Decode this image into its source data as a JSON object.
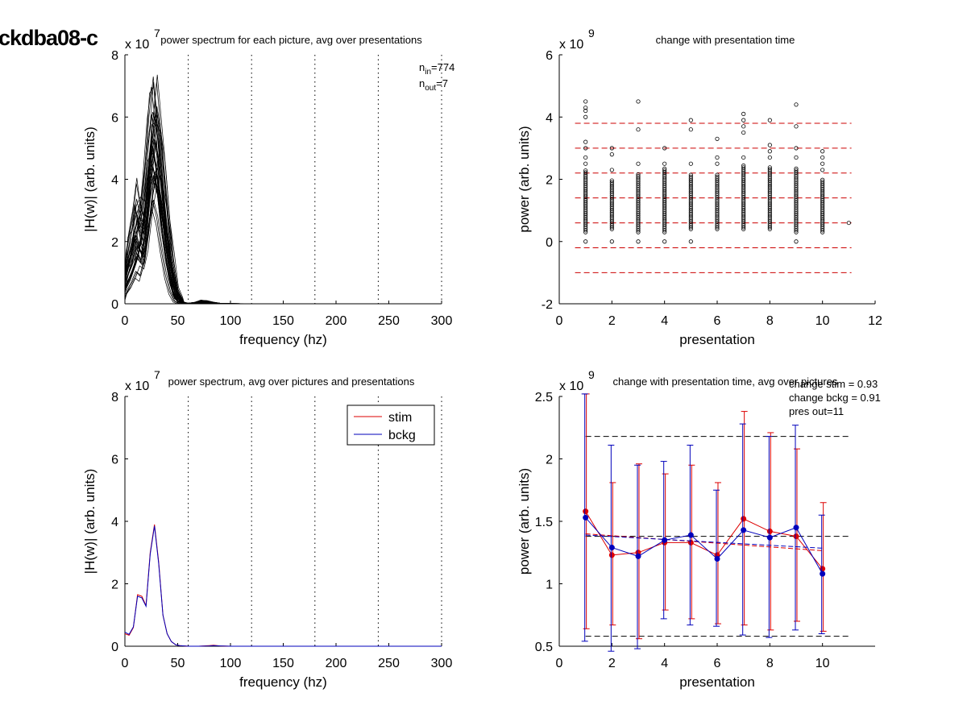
{
  "figure_label": "ckdba08-c",
  "chart_data": [
    {
      "id": "p1",
      "type": "line",
      "title": "power spectrum for each picture, avg over presentations",
      "xlabel": "frequency (hz)",
      "ylabel": "|H(w)| (arb. units)",
      "exponent": {
        "base": "x 10",
        "power": "7"
      },
      "xlim": [
        0,
        300
      ],
      "ylim": [
        0,
        8
      ],
      "xticks": [
        0,
        50,
        100,
        150,
        200,
        250,
        300
      ],
      "yticks": [
        0,
        2,
        4,
        6,
        8
      ],
      "vlines": [
        60,
        120,
        180,
        240,
        300
      ],
      "annotation": {
        "n_in_sub": "in",
        "n_in_val": "=774",
        "n_out_sub": "out",
        "n_out_val": "=7"
      },
      "x": [
        0,
        4,
        8,
        12,
        16,
        20,
        24,
        28,
        32,
        36,
        40,
        44,
        48,
        52,
        56,
        60,
        66,
        72,
        78,
        84,
        90,
        100,
        120,
        150,
        200,
        250,
        300
      ],
      "envelope": {
        "upper": [
          1.2,
          2.2,
          3.0,
          3.9,
          3.2,
          4.5,
          6.5,
          7.4,
          6.2,
          4.5,
          3.0,
          1.6,
          0.6,
          0.2,
          0.05,
          0.02,
          0.05,
          0.12,
          0.1,
          0.05,
          0.02,
          0.01,
          0,
          0,
          0,
          0,
          0
        ],
        "lower": [
          0.1,
          0.3,
          0.5,
          0.8,
          0.7,
          1.2,
          2.2,
          3.0,
          2.5,
          1.6,
          0.8,
          0.3,
          0.05,
          0,
          0,
          0,
          0,
          0.02,
          0.02,
          0,
          0,
          0,
          0,
          0,
          0,
          0,
          0
        ]
      },
      "num_curves": 40
    },
    {
      "id": "p2",
      "type": "scatter",
      "title": "change with presentation time",
      "xlabel": "presentation",
      "ylabel": "power (arb. units)",
      "exponent": {
        "base": "x 10",
        "power": "9"
      },
      "xlim": [
        0,
        12
      ],
      "ylim": [
        -2,
        6
      ],
      "xticks": [
        0,
        2,
        4,
        6,
        8,
        10,
        12
      ],
      "yticks": [
        -2,
        0,
        2,
        4,
        6
      ],
      "hlines": [
        3.8,
        3.0,
        2.2,
        1.4,
        0.6,
        -0.2,
        -1.0
      ],
      "hline_color": "#cc0000",
      "columns": [
        {
          "x": 1,
          "dense": [
            0.3,
            2.3
          ],
          "outliers": [
            0,
            2.5,
            2.7,
            3.0,
            3.2,
            4.0,
            4.2,
            4.3,
            4.5
          ]
        },
        {
          "x": 2,
          "dense": [
            0.4,
            2.0
          ],
          "outliers": [
            0,
            2.3,
            2.8,
            3.0
          ]
        },
        {
          "x": 3,
          "dense": [
            0.3,
            2.2
          ],
          "outliers": [
            0,
            2.5,
            3.6,
            4.5
          ]
        },
        {
          "x": 4,
          "dense": [
            0.3,
            2.4
          ],
          "outliers": [
            0,
            2.5,
            3.0
          ]
        },
        {
          "x": 5,
          "dense": [
            0.4,
            2.2
          ],
          "outliers": [
            0,
            2.5,
            3.6,
            3.9
          ]
        },
        {
          "x": 6,
          "dense": [
            0.4,
            2.2
          ],
          "outliers": [
            2.5,
            2.7,
            3.3
          ]
        },
        {
          "x": 7,
          "dense": [
            0.4,
            2.5
          ],
          "outliers": [
            2.7,
            3.5,
            3.7,
            3.9,
            4.1
          ]
        },
        {
          "x": 8,
          "dense": [
            0.4,
            2.4
          ],
          "outliers": [
            2.7,
            2.9,
            3.1,
            3.9
          ]
        },
        {
          "x": 9,
          "dense": [
            0.3,
            2.4
          ],
          "outliers": [
            0,
            2.7,
            3.0,
            3.7,
            4.4
          ]
        },
        {
          "x": 10,
          "dense": [
            0.3,
            2.0
          ],
          "outliers": [
            2.3,
            2.5,
            2.7,
            2.9
          ]
        },
        {
          "x": 11,
          "dense": null,
          "outliers": [
            0.6
          ]
        }
      ]
    },
    {
      "id": "p3",
      "type": "line",
      "title": "power spectrum, avg over pictures and presentations",
      "xlabel": "frequency (hz)",
      "ylabel": "|H(w)| (arb. units)",
      "exponent": {
        "base": "x 10",
        "power": "7"
      },
      "xlim": [
        0,
        300
      ],
      "ylim": [
        0,
        8
      ],
      "xticks": [
        0,
        50,
        100,
        150,
        200,
        250,
        300
      ],
      "yticks": [
        0,
        2,
        4,
        6,
        8
      ],
      "vlines": [
        60,
        120,
        180,
        240,
        300
      ],
      "x": [
        0,
        4,
        8,
        12,
        16,
        20,
        24,
        28,
        32,
        36,
        40,
        44,
        48,
        52,
        56,
        60,
        70,
        80,
        84,
        90,
        100,
        150,
        200,
        250,
        300
      ],
      "series": [
        {
          "name": "stim",
          "color": "#dd0000",
          "values": [
            0.4,
            0.35,
            0.6,
            1.65,
            1.6,
            1.3,
            3.0,
            3.9,
            2.7,
            1.0,
            0.4,
            0.15,
            0.05,
            0.02,
            0.01,
            0,
            0,
            0.02,
            0.03,
            0.01,
            0,
            0,
            0,
            0,
            0
          ]
        },
        {
          "name": "bckg",
          "color": "#0000bb",
          "values": [
            0.45,
            0.38,
            0.62,
            1.6,
            1.55,
            1.28,
            2.95,
            3.85,
            2.65,
            1.0,
            0.4,
            0.15,
            0.05,
            0.02,
            0.01,
            0,
            0,
            0.01,
            0.02,
            0.01,
            0,
            0,
            0,
            0,
            0
          ]
        }
      ],
      "legend": {
        "placement": "top-right"
      }
    },
    {
      "id": "p4",
      "type": "line",
      "title": "change with presentation time, avg over pictures",
      "xlabel": "presentation",
      "ylabel": "power (arb. units)",
      "exponent": {
        "base": "x 10",
        "power": "9"
      },
      "xlim": [
        0,
        12
      ],
      "ylim": [
        0.5,
        2.5
      ],
      "xticks": [
        0,
        2,
        4,
        6,
        8,
        10
      ],
      "yticks": [
        0.5,
        1,
        1.5,
        2,
        2.5
      ],
      "annotations": [
        "change stim = 0.93",
        "change bckg = 0.91",
        "pres out=11"
      ],
      "hlines": [
        2.18,
        1.38,
        0.58
      ],
      "x": [
        1,
        2,
        3,
        4,
        5,
        6,
        7,
        8,
        9,
        10
      ],
      "series": [
        {
          "name": "stim",
          "color": "#dd0000",
          "values": [
            1.58,
            1.23,
            1.25,
            1.33,
            1.33,
            1.23,
            1.52,
            1.42,
            1.38,
            1.12
          ],
          "err_low": [
            0.64,
            0.67,
            0.56,
            0.79,
            0.72,
            0.68,
            0.67,
            0.63,
            0.7,
            0.62
          ],
          "err_high": [
            2.52,
            1.81,
            1.96,
            1.88,
            1.95,
            1.81,
            2.38,
            2.21,
            2.08,
            1.65
          ],
          "trend": [
            1.4,
            1.265
          ]
        },
        {
          "name": "bckg",
          "color": "#0000bb",
          "values": [
            1.53,
            1.29,
            1.22,
            1.35,
            1.39,
            1.2,
            1.43,
            1.37,
            1.45,
            1.08
          ],
          "err_low": [
            0.54,
            0.46,
            0.48,
            0.72,
            0.67,
            0.66,
            0.59,
            0.57,
            0.63,
            0.6
          ],
          "err_high": [
            2.52,
            2.11,
            1.95,
            1.98,
            2.11,
            1.75,
            2.28,
            2.18,
            2.27,
            1.55
          ],
          "trend": [
            1.39,
            1.285
          ]
        }
      ]
    }
  ]
}
